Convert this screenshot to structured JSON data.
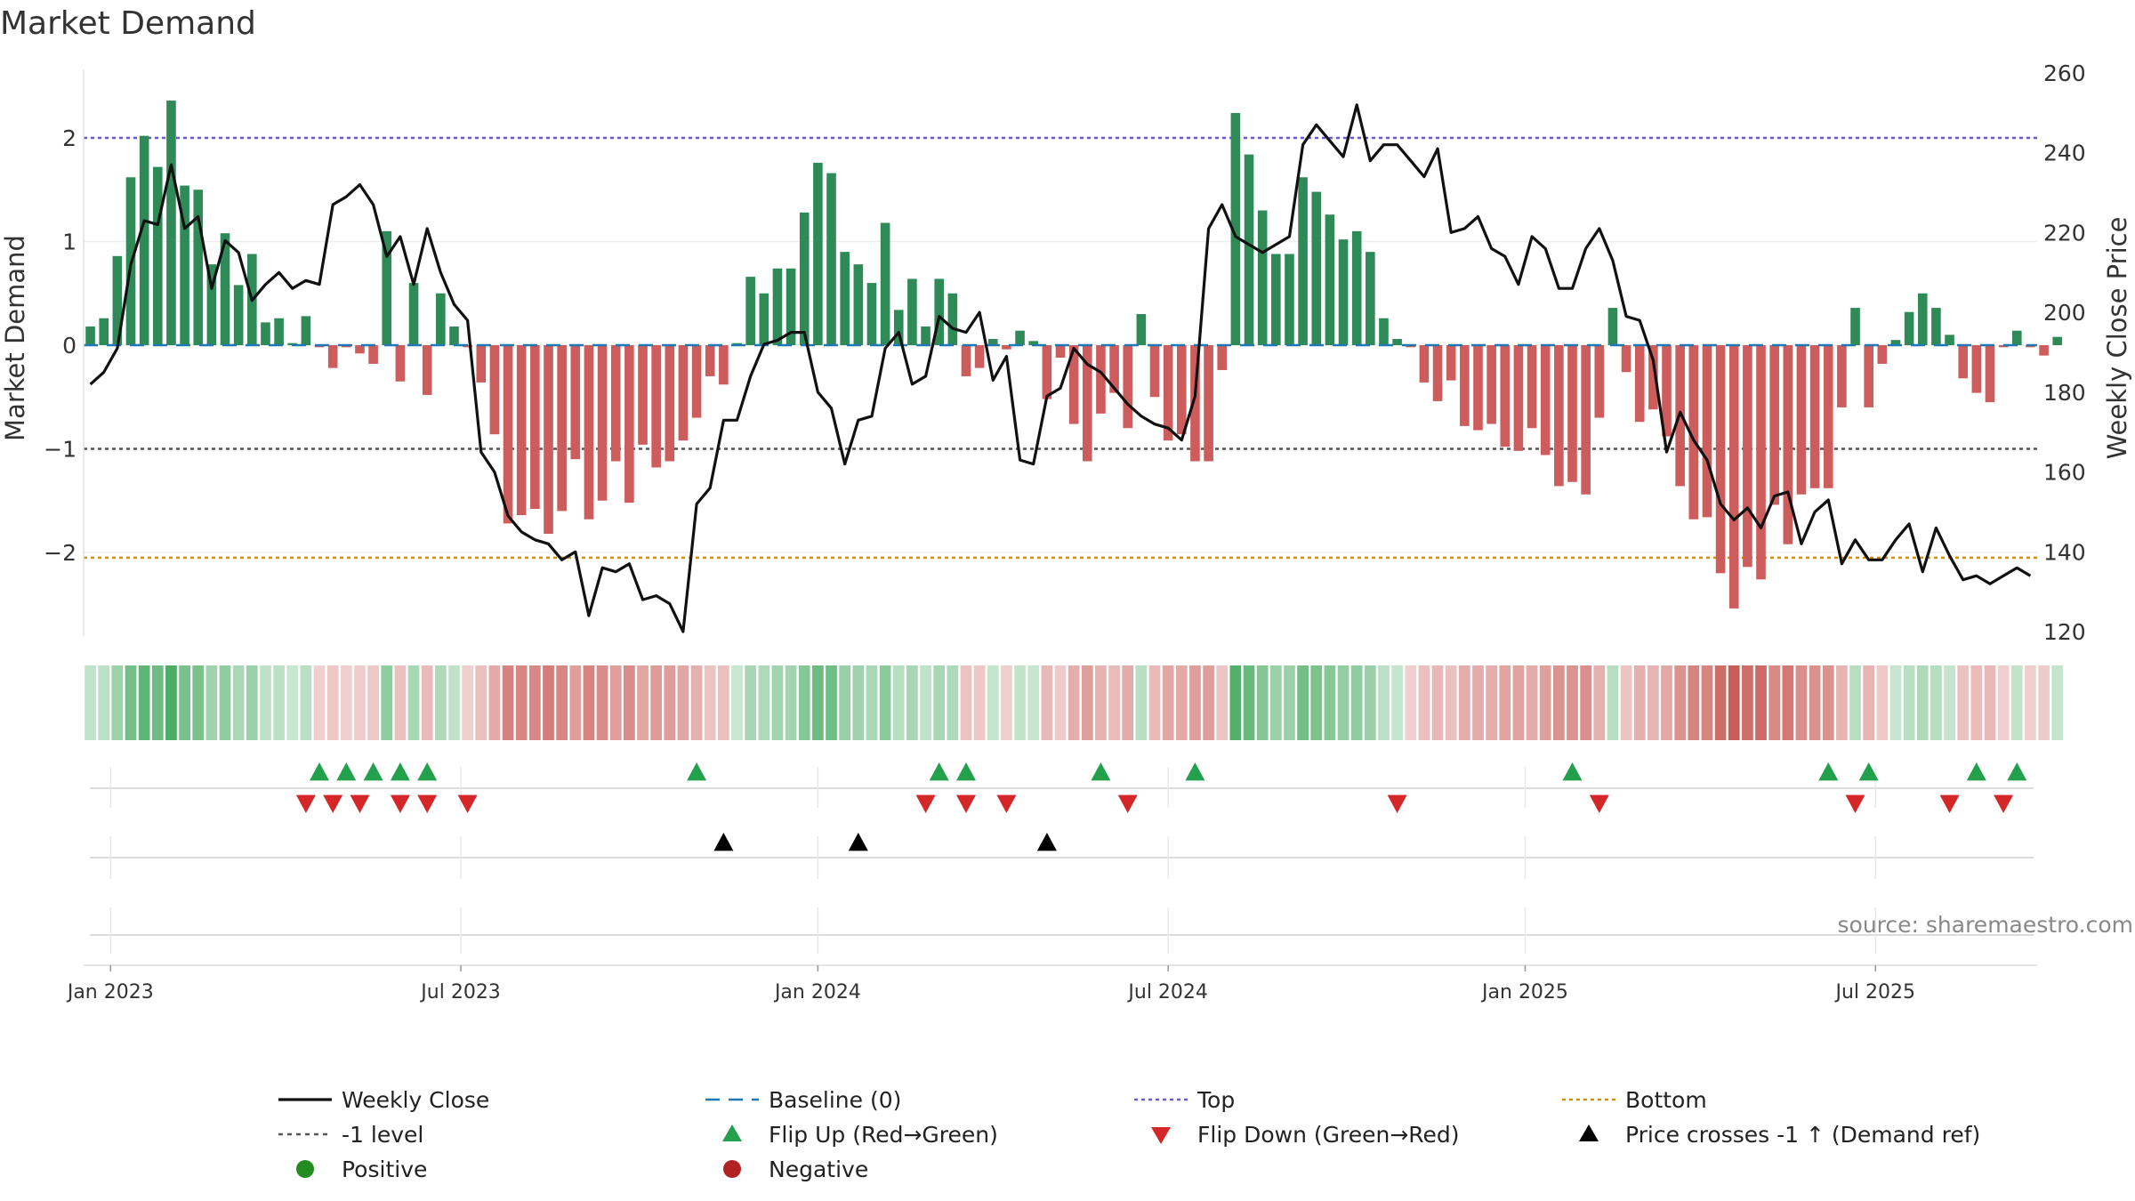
{
  "title": "Market Demand",
  "source": "source: sharemaestro.com",
  "colors": {
    "positive": "#2e8b57",
    "negative": "#cd5c5c",
    "price": "#111111",
    "baseline": "#1f77b4",
    "top": "#6a5acd",
    "bottom": "#d4900d",
    "minus1": "#555555",
    "flip_up": "#22a04b",
    "flip_down": "#d62728",
    "price_cross": "#000000",
    "legend_positive": "#228b22",
    "legend_negative": "#b22222"
  },
  "chart_data": {
    "type": "bar+line",
    "title": "Market Demand",
    "ylabel": "Market Demand",
    "y2label": "Weekly Close Price",
    "ylim": [
      -2.8,
      2.65
    ],
    "y2lim": [
      120,
      260
    ],
    "yticks": [
      2,
      1,
      0,
      -1,
      -2
    ],
    "ytick_labels": [
      "2",
      "1",
      "0",
      "−1",
      "−2"
    ],
    "y2ticks": [
      260,
      240,
      220,
      200,
      180,
      160,
      140,
      120
    ],
    "reference_lines": {
      "top": 2,
      "minus_one": -1,
      "bottom": -2.05,
      "baseline": 0
    },
    "weeks": 145,
    "x_ticks": [
      {
        "label": "Jan 2023",
        "week": 2
      },
      {
        "label": "Jul 2023",
        "week": 28
      },
      {
        "label": "Jan 2024",
        "week": 54.5
      },
      {
        "label": "Jul 2024",
        "week": 80.5
      },
      {
        "label": "Jan 2025",
        "week": 107
      },
      {
        "label": "Jul 2025",
        "week": 133
      }
    ],
    "demand": [
      0.18,
      0.26,
      0.86,
      1.62,
      2.02,
      1.72,
      2.36,
      1.54,
      1.5,
      0.78,
      1.08,
      0.58,
      0.88,
      0.22,
      0.26,
      0.02,
      0.28,
      -0.02,
      -0.22,
      -0.02,
      -0.08,
      -0.18,
      1.1,
      -0.35,
      0.6,
      -0.48,
      0.5,
      0.18,
      -0.02,
      -0.36,
      -0.86,
      -1.72,
      -1.64,
      -1.58,
      -1.82,
      -1.6,
      -1.1,
      -1.68,
      -1.5,
      -1.12,
      -1.52,
      -0.96,
      -1.18,
      -1.12,
      -0.92,
      -0.7,
      -0.3,
      -0.38,
      0.02,
      0.66,
      0.5,
      0.74,
      0.74,
      1.28,
      1.76,
      1.66,
      0.9,
      0.78,
      0.6,
      1.18,
      0.34,
      0.64,
      0.18,
      0.64,
      0.5,
      -0.3,
      -0.22,
      0.06,
      -0.04,
      0.14,
      0.04,
      -0.52,
      -0.12,
      -0.76,
      -1.12,
      -0.66,
      -0.46,
      -0.8,
      0.3,
      -0.5,
      -0.92,
      -0.86,
      -1.12,
      -1.12,
      -0.24,
      2.24,
      1.84,
      1.3,
      0.88,
      0.88,
      1.62,
      1.48,
      1.26,
      1.02,
      1.1,
      0.9,
      0.26,
      0.06,
      -0.02,
      -0.36,
      -0.54,
      -0.34,
      -0.78,
      -0.82,
      -0.76,
      -0.98,
      -1.02,
      -0.8,
      -1.06,
      -1.36,
      -1.32,
      -1.44,
      -0.7,
      0.36,
      -0.26,
      -0.74,
      -0.62,
      -0.88,
      -1.36,
      -1.68,
      -1.66,
      -2.2,
      -2.54,
      -2.14,
      -2.26,
      -1.54,
      -1.92,
      -1.44,
      -1.38,
      -1.38,
      -0.6,
      0.36,
      -0.6,
      -0.18,
      0.05,
      0.32,
      0.5,
      0.36,
      0.1,
      -0.32,
      -0.46,
      -0.55,
      -0.02,
      0.14,
      -0.02,
      -0.1,
      0.08
    ],
    "price": [
      182,
      185,
      191,
      212,
      223,
      222,
      237,
      221,
      224,
      206,
      218,
      215,
      203,
      207,
      210,
      206,
      208,
      207,
      227,
      229,
      232,
      227,
      214,
      219,
      207,
      221,
      210,
      202,
      198,
      165,
      160,
      149,
      145,
      143,
      142,
      138,
      140,
      124,
      136,
      135,
      137,
      128,
      129,
      127,
      120,
      152,
      156,
      173,
      173,
      184,
      192,
      193,
      195,
      195,
      180,
      176,
      162,
      173,
      174,
      191,
      195,
      182,
      184,
      199,
      196,
      195,
      200,
      183,
      189,
      163,
      162,
      179,
      181,
      191,
      187,
      185,
      181,
      177,
      174,
      172,
      171,
      168,
      179,
      221,
      227,
      219,
      217,
      215,
      217,
      219,
      242,
      247,
      243,
      239,
      252,
      238,
      242,
      242,
      238,
      234,
      241,
      220,
      221,
      224,
      216,
      214,
      207,
      219,
      216,
      206,
      206,
      216,
      221,
      213,
      199,
      198,
      188,
      165,
      175,
      168,
      163,
      152,
      148,
      151,
      146,
      154,
      155,
      142,
      150,
      153,
      137,
      143,
      138,
      138,
      143,
      147,
      135,
      146,
      139,
      133,
      134,
      132,
      134,
      136,
      134
    ]
  },
  "flip_up_weeks": [
    17,
    19,
    21,
    23,
    25,
    45,
    63,
    65,
    75,
    82,
    110,
    129,
    132,
    140,
    143
  ],
  "flip_down_weeks": [
    16,
    18,
    20,
    23,
    25,
    28,
    62,
    65,
    68,
    77,
    97,
    112,
    131,
    138,
    142
  ],
  "price_cross_weeks": [
    47,
    57,
    71
  ],
  "legend": [
    {
      "key": "weekly_close",
      "label": "Weekly Close"
    },
    {
      "key": "baseline",
      "label": "Baseline (0)"
    },
    {
      "key": "top",
      "label": "Top"
    },
    {
      "key": "bottom",
      "label": "Bottom"
    },
    {
      "key": "minus1",
      "label": "-1 level"
    },
    {
      "key": "flip_up",
      "label": "Flip Up (Red→Green)"
    },
    {
      "key": "flip_down",
      "label": "Flip Down (Green→Red)"
    },
    {
      "key": "price_cross",
      "label": "Price crosses -1 ↑ (Demand ref)"
    },
    {
      "key": "positive",
      "label": "Positive"
    },
    {
      "key": "negative",
      "label": "Negative"
    }
  ]
}
